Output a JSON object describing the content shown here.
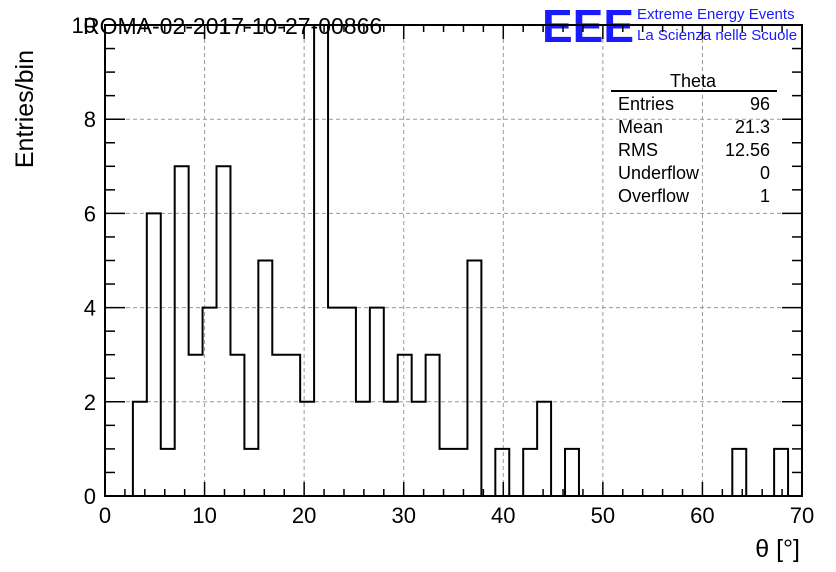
{
  "header": {
    "title": "ROMA-02-2017-10-27-00866",
    "logo_letters": "EEE",
    "logo_line1": "Extreme Energy Events",
    "logo_line2": "La Scienza nelle Scuole",
    "logo_color": "#1a1aff"
  },
  "stats_box": {
    "name": "Theta",
    "rows": [
      {
        "label": "Entries",
        "value": "96"
      },
      {
        "label": "Mean",
        "value": "21.3"
      },
      {
        "label": "RMS",
        "value": "12.56"
      },
      {
        "label": "Underflow",
        "value": "0"
      },
      {
        "label": "Overflow",
        "value": "1"
      }
    ]
  },
  "chart_data": {
    "type": "bar",
    "style": "step-histogram",
    "xlabel": "θ [°]",
    "ylabel": "Entries/bin",
    "xlim": [
      0,
      70
    ],
    "ylim": [
      0,
      10
    ],
    "grid": true,
    "x_ticks": [
      0,
      10,
      20,
      30,
      40,
      50,
      60,
      70
    ],
    "y_ticks": [
      0,
      2,
      4,
      6,
      8,
      10
    ],
    "bin_edges": [
      0,
      1.4,
      2.8,
      4.2,
      5.6,
      7.0,
      8.4,
      9.8,
      11.2,
      12.6,
      14.0,
      15.4,
      16.8,
      18.2,
      19.6,
      21.0,
      22.4,
      23.8,
      25.2,
      26.6,
      28.0,
      29.4,
      30.8,
      32.2,
      33.6,
      35.0,
      36.4,
      37.8,
      39.2,
      40.6,
      42.0,
      43.4,
      44.8,
      46.2,
      47.6,
      49.0,
      50.4,
      51.8,
      53.2,
      54.6,
      56.0,
      57.4,
      58.8,
      60.2,
      61.6,
      63.0,
      64.4,
      65.8,
      67.2,
      68.6,
      70.0
    ],
    "counts": [
      0,
      0,
      2,
      6,
      1,
      7,
      3,
      4,
      7,
      3,
      1,
      5,
      3,
      3,
      2,
      10,
      4,
      4,
      2,
      4,
      2,
      3,
      2,
      3,
      1,
      1,
      5,
      0,
      1,
      0,
      1,
      2,
      0,
      1,
      0,
      0,
      0,
      0,
      0,
      0,
      0,
      0,
      0,
      0,
      0,
      1,
      0,
      0,
      1,
      0
    ]
  }
}
